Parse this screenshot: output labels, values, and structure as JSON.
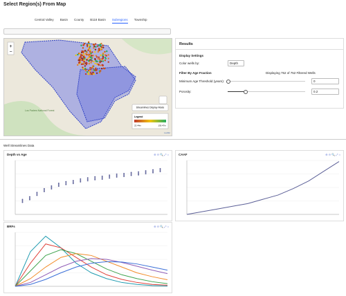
{
  "header": {
    "title": "Select Region(s) From Map"
  },
  "tabs": [
    "Central Valley",
    "Basin",
    "County",
    "B118 Basin",
    "Subregions",
    "Township"
  ],
  "active_tab": 4,
  "map": {
    "zoom_in": "+",
    "zoom_out": "−",
    "place_label": "Los Padres National Forest",
    "mode_button": "Streamlines Display Mode",
    "legend_title": "Legend",
    "legend_min": "22.44m",
    "legend_max": "130.47m",
    "attribution": "Leaflet"
  },
  "results": {
    "title": "Results",
    "display_settings": "Display Settings",
    "color_by_label": "Color wells by:",
    "color_by_value": "Depth",
    "filter_title": "Filter By Age Fraction",
    "count_text": "Displaying 752 of 752 Filtered Wells",
    "min_age_label": "Minimum Age Threshold (years):",
    "min_age_value": "0",
    "porosity_label": "Porosity:",
    "porosity_value": "0.2"
  },
  "section_title": "Well Streamlines Data",
  "chart_data": [
    {
      "type": "scatter",
      "title": "Depth vs Age",
      "color": "#5b5f97",
      "x": [
        2,
        4,
        6,
        8,
        10,
        12,
        14,
        16,
        18,
        20,
        22,
        24,
        26,
        28,
        30,
        32,
        34,
        36,
        38,
        40
      ],
      "values": [
        25,
        30,
        38,
        45,
        50,
        55,
        58,
        60,
        63,
        65,
        67,
        68,
        70,
        72,
        73,
        75,
        76,
        78,
        80,
        82
      ],
      "xlim": [
        0,
        42
      ],
      "ylim": [
        0,
        100
      ],
      "grid": true
    },
    {
      "type": "line",
      "title": "CAAF",
      "color": "#5b5f97",
      "x": [
        0,
        10,
        20,
        30,
        40,
        50,
        60,
        70,
        80,
        90,
        100
      ],
      "values": [
        0,
        0.05,
        0.1,
        0.15,
        0.2,
        0.28,
        0.36,
        0.48,
        0.62,
        0.8,
        0.98
      ],
      "xlim": [
        0,
        100
      ],
      "ylim": [
        0,
        1
      ],
      "grid": true
    },
    {
      "type": "multiline",
      "title": "BRFs",
      "x": [
        0,
        2,
        4,
        6,
        8,
        10,
        12,
        14,
        16,
        18,
        20
      ],
      "series": [
        {
          "color": "#1f9bb0",
          "values": [
            0,
            0.9,
            1.3,
            1.0,
            0.6,
            0.35,
            0.2,
            0.1,
            0.05,
            0.02,
            0.01
          ]
        },
        {
          "color": "#e0413a",
          "values": [
            0,
            0.6,
            1.1,
            1.0,
            0.75,
            0.5,
            0.3,
            0.18,
            0.1,
            0.05,
            0.03
          ]
        },
        {
          "color": "#3fa34d",
          "values": [
            0,
            0.4,
            0.8,
            0.95,
            0.85,
            0.65,
            0.45,
            0.3,
            0.2,
            0.12,
            0.07
          ]
        },
        {
          "color": "#f28c28",
          "values": [
            0,
            0.2,
            0.5,
            0.75,
            0.85,
            0.8,
            0.65,
            0.5,
            0.35,
            0.25,
            0.17
          ]
        },
        {
          "color": "#8e5bb5",
          "values": [
            0,
            0.1,
            0.3,
            0.5,
            0.65,
            0.72,
            0.7,
            0.62,
            0.52,
            0.42,
            0.33
          ]
        },
        {
          "color": "#3a6fd8",
          "values": [
            0,
            0.05,
            0.18,
            0.35,
            0.5,
            0.6,
            0.64,
            0.63,
            0.58,
            0.5,
            0.42
          ]
        }
      ],
      "xlim": [
        0,
        20
      ],
      "ylim": [
        0,
        1.4
      ],
      "grid": true
    }
  ]
}
